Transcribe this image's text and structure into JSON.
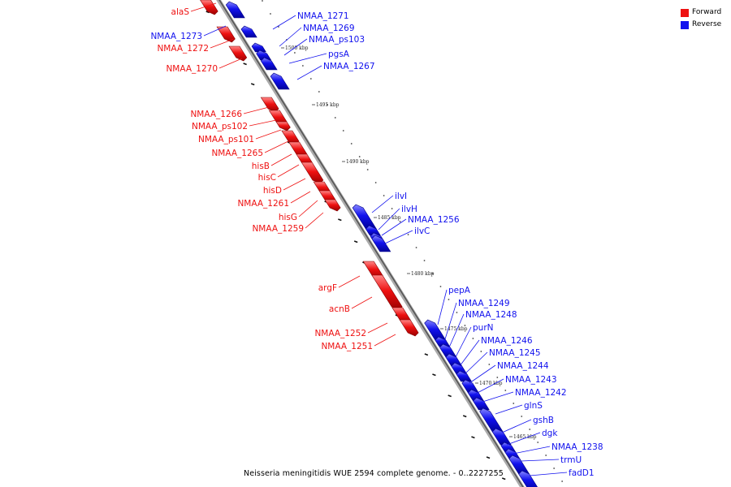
{
  "legend": {
    "forward_label": "Forward",
    "reverse_label": "Reverse",
    "forward_color": "#ee1111",
    "reverse_color": "#1111ee"
  },
  "caption": "Neisseria meningitidis WUE 2594 complete genome. - 0..2227255",
  "scale_ticks": [
    "1500 kbp",
    "1495 kbp",
    "1490 kbp",
    "1485 kbp",
    "1480 kbp",
    "1475 kbp",
    "1470 kbp",
    "1465 kbp"
  ],
  "genes": [
    {
      "name": "alaS",
      "strand": "forward"
    },
    {
      "name": "NMAA_1273",
      "strand": "reverse"
    },
    {
      "name": "NMAA_1271",
      "strand": "reverse"
    },
    {
      "name": "NMAA_1272",
      "strand": "forward"
    },
    {
      "name": "NMAA_1269",
      "strand": "reverse"
    },
    {
      "name": "NMAA_ps103",
      "strand": "reverse"
    },
    {
      "name": "pgsA",
      "strand": "reverse"
    },
    {
      "name": "NMAA_1270",
      "strand": "forward"
    },
    {
      "name": "NMAA_1267",
      "strand": "reverse"
    },
    {
      "name": "NMAA_1266",
      "strand": "forward"
    },
    {
      "name": "NMAA_ps102",
      "strand": "forward"
    },
    {
      "name": "NMAA_ps101",
      "strand": "forward"
    },
    {
      "name": "NMAA_1265",
      "strand": "forward"
    },
    {
      "name": "hisB",
      "strand": "forward"
    },
    {
      "name": "hisC",
      "strand": "forward"
    },
    {
      "name": "hisD",
      "strand": "forward"
    },
    {
      "name": "NMAA_1261",
      "strand": "forward"
    },
    {
      "name": "hisG",
      "strand": "forward"
    },
    {
      "name": "NMAA_1259",
      "strand": "forward"
    },
    {
      "name": "ilvI",
      "strand": "reverse"
    },
    {
      "name": "ilvH",
      "strand": "reverse"
    },
    {
      "name": "NMAA_1256",
      "strand": "reverse"
    },
    {
      "name": "ilvC",
      "strand": "reverse"
    },
    {
      "name": "argF",
      "strand": "forward"
    },
    {
      "name": "acnB",
      "strand": "forward"
    },
    {
      "name": "NMAA_1252",
      "strand": "forward"
    },
    {
      "name": "NMAA_1251",
      "strand": "forward"
    },
    {
      "name": "pepA",
      "strand": "reverse"
    },
    {
      "name": "NMAA_1249",
      "strand": "reverse"
    },
    {
      "name": "NMAA_1248",
      "strand": "reverse"
    },
    {
      "name": "purN",
      "strand": "reverse"
    },
    {
      "name": "NMAA_1246",
      "strand": "reverse"
    },
    {
      "name": "NMAA_1245",
      "strand": "reverse"
    },
    {
      "name": "NMAA_1244",
      "strand": "reverse"
    },
    {
      "name": "NMAA_1243",
      "strand": "reverse"
    },
    {
      "name": "NMAA_1242",
      "strand": "reverse"
    },
    {
      "name": "glnS",
      "strand": "reverse"
    },
    {
      "name": "gshB",
      "strand": "reverse"
    },
    {
      "name": "dgk",
      "strand": "reverse"
    },
    {
      "name": "NMAA_1238",
      "strand": "reverse"
    },
    {
      "name": "trmU",
      "strand": "reverse"
    },
    {
      "name": "fadD1",
      "strand": "reverse"
    }
  ]
}
